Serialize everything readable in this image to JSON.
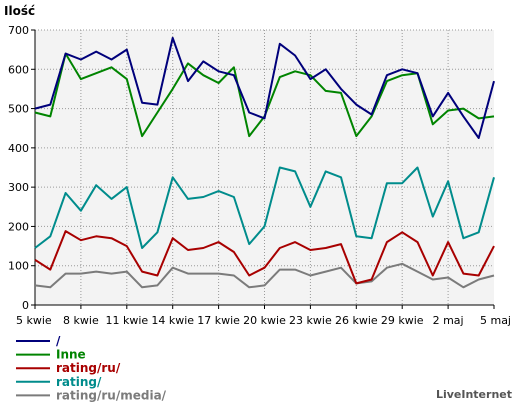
{
  "chart_data": {
    "type": "line",
    "title": "",
    "ylabel": "Ilość",
    "xlabel": "",
    "ylim": [
      0,
      700
    ],
    "yticks": [
      0,
      100,
      200,
      300,
      400,
      500,
      600,
      700
    ],
    "grid": true,
    "legend_position": "bottom-left",
    "categories": [
      "5 kwie",
      "6 kwie",
      "7 kwie",
      "8 kwie",
      "9 kwie",
      "10 kwie",
      "11 kwie",
      "12 kwie",
      "13 kwie",
      "14 kwie",
      "15 kwie",
      "16 kwie",
      "17 kwie",
      "18 kwie",
      "19 kwie",
      "20 kwie",
      "21 kwie",
      "22 kwie",
      "23 kwie",
      "24 kwie",
      "25 kwie",
      "26 kwie",
      "27 kwie",
      "28 kwie",
      "29 kwie",
      "30 kwie",
      "1 maj",
      "2 maj",
      "3 maj",
      "4 maj",
      "5 maj"
    ],
    "x_tick_labels": [
      "5 kwie",
      "8 kwie",
      "11 kwie",
      "14 kwie",
      "17 kwie",
      "20 kwie",
      "23 kwie",
      "26 kwie",
      "29 kwie",
      "2 maj",
      "5 maj"
    ],
    "x_tick_every": 3,
    "series": [
      {
        "name": "/",
        "color": "#00007b",
        "values": [
          500,
          510,
          640,
          625,
          645,
          625,
          650,
          515,
          510,
          680,
          570,
          620,
          595,
          585,
          490,
          475,
          665,
          635,
          575,
          600,
          550,
          510,
          485,
          585,
          600,
          590,
          480,
          540,
          480,
          425,
          570
        ]
      },
      {
        "name": "Inne",
        "color": "#008400",
        "values": [
          490,
          480,
          640,
          575,
          590,
          605,
          575,
          430,
          490,
          550,
          615,
          585,
          565,
          605,
          430,
          480,
          580,
          595,
          585,
          545,
          540,
          430,
          480,
          570,
          585,
          590,
          460,
          495,
          500,
          475,
          480
        ]
      },
      {
        "name": "rating/ru/",
        "color": "#a80000",
        "values": [
          115,
          90,
          188,
          165,
          175,
          170,
          150,
          85,
          75,
          170,
          140,
          145,
          160,
          135,
          75,
          95,
          145,
          160,
          140,
          145,
          155,
          55,
          65,
          160,
          185,
          160,
          75,
          160,
          80,
          75,
          150
        ]
      },
      {
        "name": "rating/",
        "color": "#008c8c",
        "values": [
          145,
          175,
          285,
          240,
          305,
          270,
          300,
          145,
          185,
          325,
          270,
          275,
          290,
          275,
          155,
          200,
          350,
          340,
          250,
          340,
          325,
          175,
          170,
          310,
          310,
          350,
          225,
          315,
          170,
          185,
          325
        ]
      },
      {
        "name": "rating/ru/media/",
        "color": "#7b7b7b",
        "values": [
          50,
          45,
          80,
          80,
          85,
          80,
          85,
          45,
          50,
          95,
          80,
          80,
          80,
          75,
          45,
          50,
          90,
          90,
          75,
          85,
          95,
          55,
          60,
          95,
          105,
          85,
          65,
          70,
          45,
          65,
          75
        ]
      }
    ],
    "brand": "LiveInternet"
  }
}
